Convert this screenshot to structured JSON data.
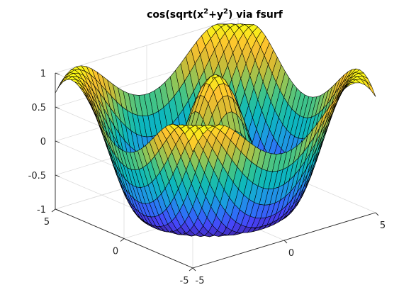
{
  "window": {
    "background": "#ffffff"
  },
  "chart_data": {
    "type": "surface",
    "title": {
      "prefix": "cos(sqrt(x",
      "sup1": "2",
      "middle": "+y",
      "sup2": "2",
      "suffix": ") via fsurf"
    },
    "function": "cos(sqrt(x^2+y^2))",
    "x_range": [
      -5,
      5
    ],
    "y_range": [
      -5,
      5
    ],
    "z_range": [
      -1,
      1
    ],
    "x_ticks": [
      -5,
      0,
      5
    ],
    "x_tick_labels": [
      "-5",
      "0",
      "5"
    ],
    "y_ticks": [
      -5,
      0,
      5
    ],
    "y_tick_labels": [
      "-5",
      "0",
      "5"
    ],
    "z_ticks": [
      -1,
      -0.5,
      0,
      0.5,
      1
    ],
    "z_tick_labels": [
      "-1",
      "-0.5",
      "0",
      "0.5",
      "1"
    ],
    "mesh_resolution": 35,
    "view": {
      "azimuth": -37.5,
      "elevation": 30
    },
    "colormap": "parula",
    "colormap_stops": [
      "#3e26a8",
      "#4743f8",
      "#2c73f6",
      "#1aa0de",
      "#0cb7be",
      "#2fc394",
      "#8bc65a",
      "#d3bb33",
      "#fdc130",
      "#f9fa14"
    ],
    "edge_color": "#000000",
    "box_color": "#dcdcdc",
    "grid": true,
    "box": "on"
  }
}
